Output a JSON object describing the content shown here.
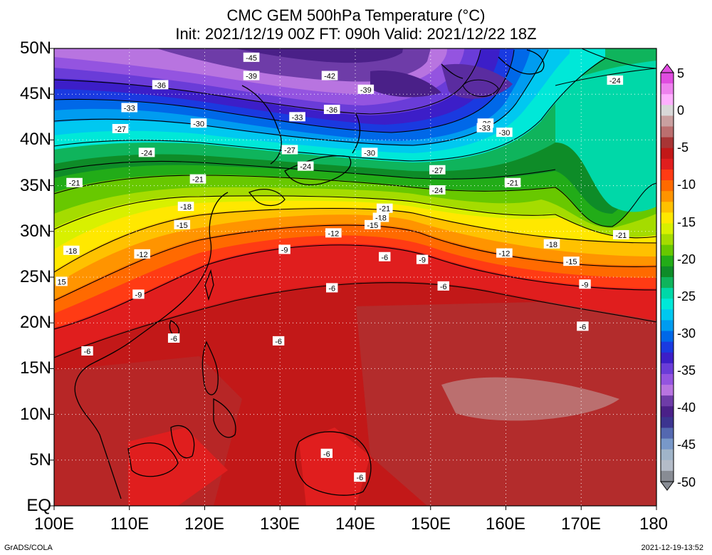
{
  "title": {
    "line1": "CMC GEM 500hPa Temperature (°C)",
    "line2": "Init: 2021/12/19 00Z  FT: 090h  Valid: 2021/12/22 18Z"
  },
  "map": {
    "lat_labels": [
      "50N",
      "45N",
      "40N",
      "35N",
      "30N",
      "25N",
      "20N",
      "15N",
      "10N",
      "5N",
      "EQ"
    ],
    "lon_labels": [
      "100E",
      "110E",
      "120E",
      "130E",
      "140E",
      "150E",
      "160E",
      "170E",
      "180"
    ]
  },
  "colorbar": {
    "labels": [
      "5",
      "0",
      "-5",
      "-10",
      "-15",
      "-20",
      "-25",
      "-30",
      "-35",
      "-40",
      "-45",
      "-50"
    ],
    "colors": [
      "#e04de0",
      "#ee82ee",
      "#ffb0ff",
      "#d8d8d8",
      "#c9a0a0",
      "#bb6f6f",
      "#a83535",
      "#c21818",
      "#e01e1e",
      "#ff3b14",
      "#ff6a00",
      "#ff9400",
      "#ffc100",
      "#ffe800",
      "#d8f000",
      "#a5dc00",
      "#68c800",
      "#22ac18",
      "#0e8c28",
      "#0fb45c",
      "#00d8a8",
      "#00e8d8",
      "#00c8f0",
      "#009cf0",
      "#0068e8",
      "#1a3ae0",
      "#3c1ec8",
      "#6a3cd8",
      "#9454e0",
      "#b874e0",
      "#6e3ca8",
      "#4a2088",
      "#3c3490",
      "#5468b0",
      "#7898c8",
      "#a0b4c8",
      "#b4bcc8",
      "#888c94"
    ]
  },
  "contour_labels": [
    {
      "text": "-45",
      "lon": 126.2,
      "lat": 49.0
    },
    {
      "text": "-39",
      "lon": 126.2,
      "lat": 47.0
    },
    {
      "text": "-42",
      "lon": 136.6,
      "lat": 47.0
    },
    {
      "text": "-36",
      "lon": 114.1,
      "lat": 46.0
    },
    {
      "text": "-39",
      "lon": 141.4,
      "lat": 45.5
    },
    {
      "text": "-33",
      "lon": 110.0,
      "lat": 43.5
    },
    {
      "text": "-36",
      "lon": 136.9,
      "lat": 43.3
    },
    {
      "text": "-33",
      "lon": 132.3,
      "lat": 42.5
    },
    {
      "text": "-30",
      "lon": 119.2,
      "lat": 41.8
    },
    {
      "text": "-36",
      "lon": 157.3,
      "lat": 41.8
    },
    {
      "text": "-33",
      "lon": 157.2,
      "lat": 41.3
    },
    {
      "text": "-30",
      "lon": 159.8,
      "lat": 40.8
    },
    {
      "text": "-27",
      "lon": 108.8,
      "lat": 41.2
    },
    {
      "text": "-27",
      "lon": 131.3,
      "lat": 38.9
    },
    {
      "text": "-30",
      "lon": 141.9,
      "lat": 38.6
    },
    {
      "text": "-24",
      "lon": 112.3,
      "lat": 38.6
    },
    {
      "text": "-24",
      "lon": 133.4,
      "lat": 37.1
    },
    {
      "text": "-27",
      "lon": 150.9,
      "lat": 36.7
    },
    {
      "text": "-21",
      "lon": 119.1,
      "lat": 35.7
    },
    {
      "text": "-21",
      "lon": 102.7,
      "lat": 35.3
    },
    {
      "text": "-21",
      "lon": 160.9,
      "lat": 35.3
    },
    {
      "text": "-24",
      "lon": 150.9,
      "lat": 34.5
    },
    {
      "text": "-18",
      "lon": 117.5,
      "lat": 32.7
    },
    {
      "text": "-21",
      "lon": 143.9,
      "lat": 32.5
    },
    {
      "text": "-18",
      "lon": 143.4,
      "lat": 31.5
    },
    {
      "text": "-15",
      "lon": 117.0,
      "lat": 30.7
    },
    {
      "text": "-15",
      "lon": 142.3,
      "lat": 30.7
    },
    {
      "text": "-12",
      "lon": 137.1,
      "lat": 29.8
    },
    {
      "text": "-24",
      "lon": 174.5,
      "lat": 46.5
    },
    {
      "text": "-21",
      "lon": 175.3,
      "lat": 29.6
    },
    {
      "text": "-18",
      "lon": 166.1,
      "lat": 28.6
    },
    {
      "text": "-18",
      "lon": 102.3,
      "lat": 27.9
    },
    {
      "text": "-12",
      "lon": 111.7,
      "lat": 27.5
    },
    {
      "text": "-9",
      "lon": 130.6,
      "lat": 28.0
    },
    {
      "text": "-12",
      "lon": 159.8,
      "lat": 27.6
    },
    {
      "text": "-6",
      "lon": 143.9,
      "lat": 27.2
    },
    {
      "text": "-9",
      "lon": 148.9,
      "lat": 26.9
    },
    {
      "text": "-15",
      "lon": 168.7,
      "lat": 26.7
    },
    {
      "text": "15",
      "lon": 101.0,
      "lat": 24.5
    },
    {
      "text": "-9",
      "lon": 170.5,
      "lat": 24.2
    },
    {
      "text": "-6",
      "lon": 136.9,
      "lat": 23.8
    },
    {
      "text": "-6",
      "lon": 151.7,
      "lat": 24.0
    },
    {
      "text": "-9",
      "lon": 111.2,
      "lat": 23.1
    },
    {
      "text": "-6",
      "lon": 170.2,
      "lat": 19.6
    },
    {
      "text": "-6",
      "lon": 115.9,
      "lat": 18.3
    },
    {
      "text": "-6",
      "lon": 129.8,
      "lat": 18.0
    },
    {
      "text": "-6",
      "lon": 104.4,
      "lat": 16.9
    },
    {
      "text": "-6",
      "lon": 136.2,
      "lat": 5.7
    },
    {
      "text": "-6",
      "lon": 140.6,
      "lat": 3.1
    }
  ]
}
